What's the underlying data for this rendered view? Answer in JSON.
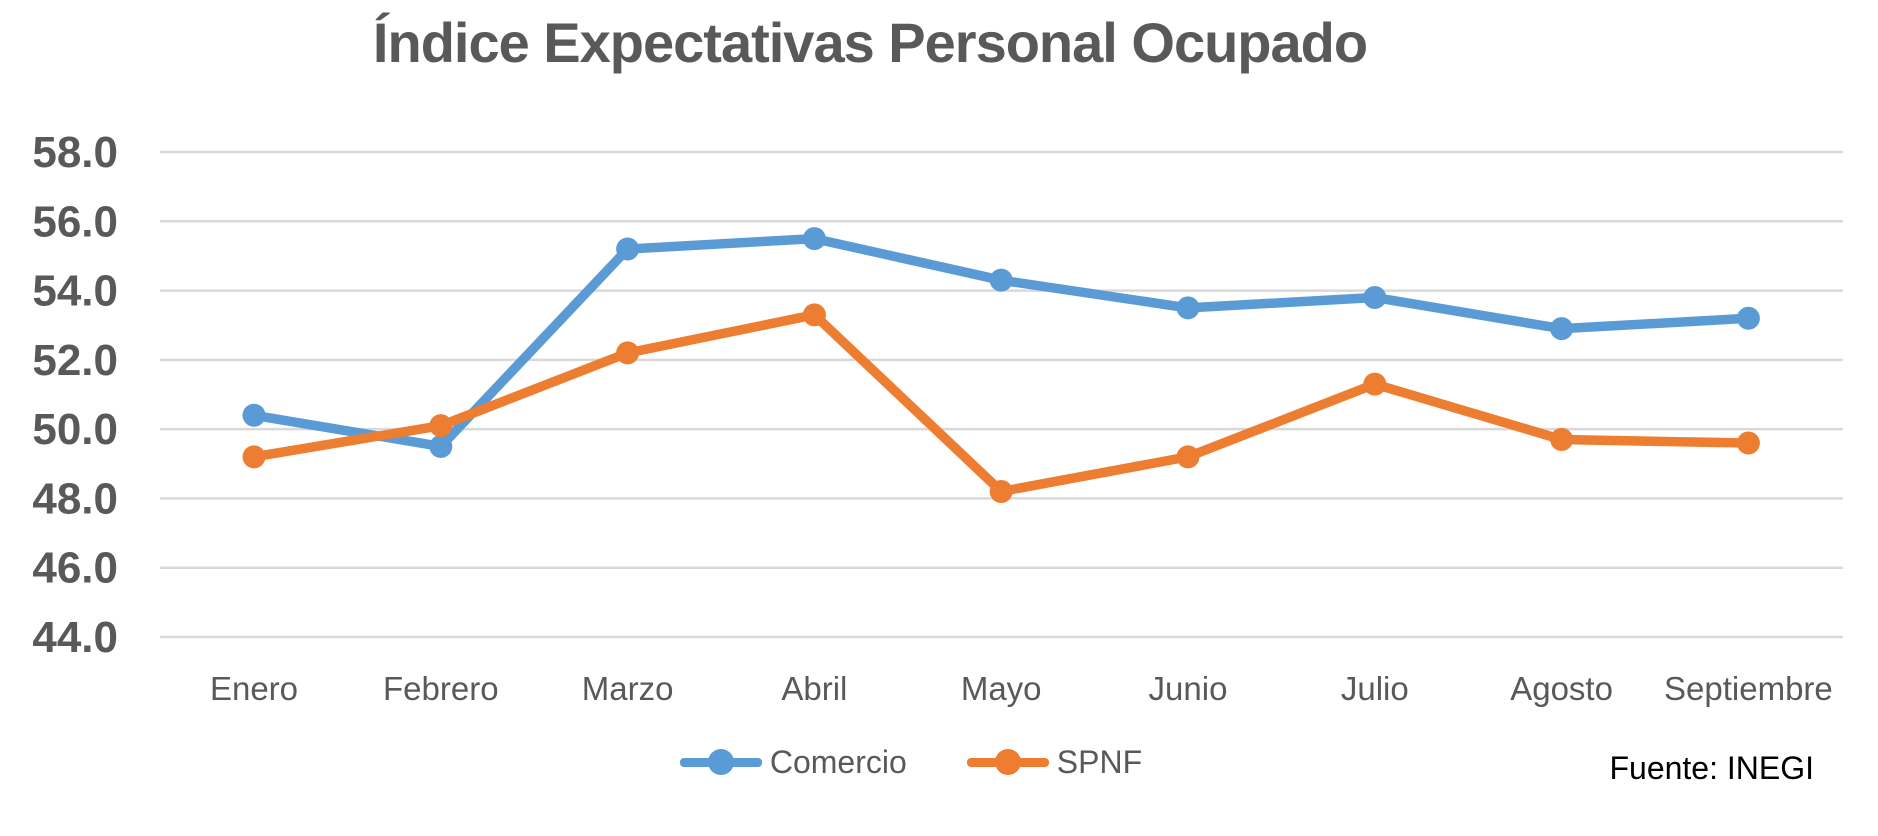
{
  "chart_data": {
    "type": "line",
    "title": "Índice Expectativas Personal Ocupado",
    "categories": [
      "Enero",
      "Febrero",
      "Marzo",
      "Abril",
      "Mayo",
      "Junio",
      "Julio",
      "Agosto",
      "Septiembre"
    ],
    "series": [
      {
        "name": "Comercio",
        "color": "#5B9BD5",
        "values": [
          50.4,
          49.5,
          55.2,
          55.5,
          54.3,
          53.5,
          53.8,
          52.9,
          53.2
        ]
      },
      {
        "name": "SPNF",
        "color": "#ED7D31",
        "values": [
          49.2,
          50.1,
          52.2,
          53.3,
          48.2,
          49.2,
          51.3,
          49.7,
          49.6
        ]
      }
    ],
    "xlabel": "",
    "ylabel": "",
    "ylim": [
      44.0,
      58.0
    ],
    "ytick_step": 2.0,
    "ytick_labels": [
      "58.0",
      "56.0",
      "54.0",
      "52.0",
      "50.0",
      "48.0",
      "46.0",
      "44.0"
    ],
    "grid": "horizontal",
    "legend_position": "bottom",
    "marker": "circle"
  },
  "footer": {
    "source": "Fuente: INEGI"
  },
  "colors": {
    "title_text": "#595959",
    "axis_label_text": "#595959",
    "gridline": "#D9D9D9",
    "source_text": "#000000",
    "background": "#FFFFFF"
  }
}
